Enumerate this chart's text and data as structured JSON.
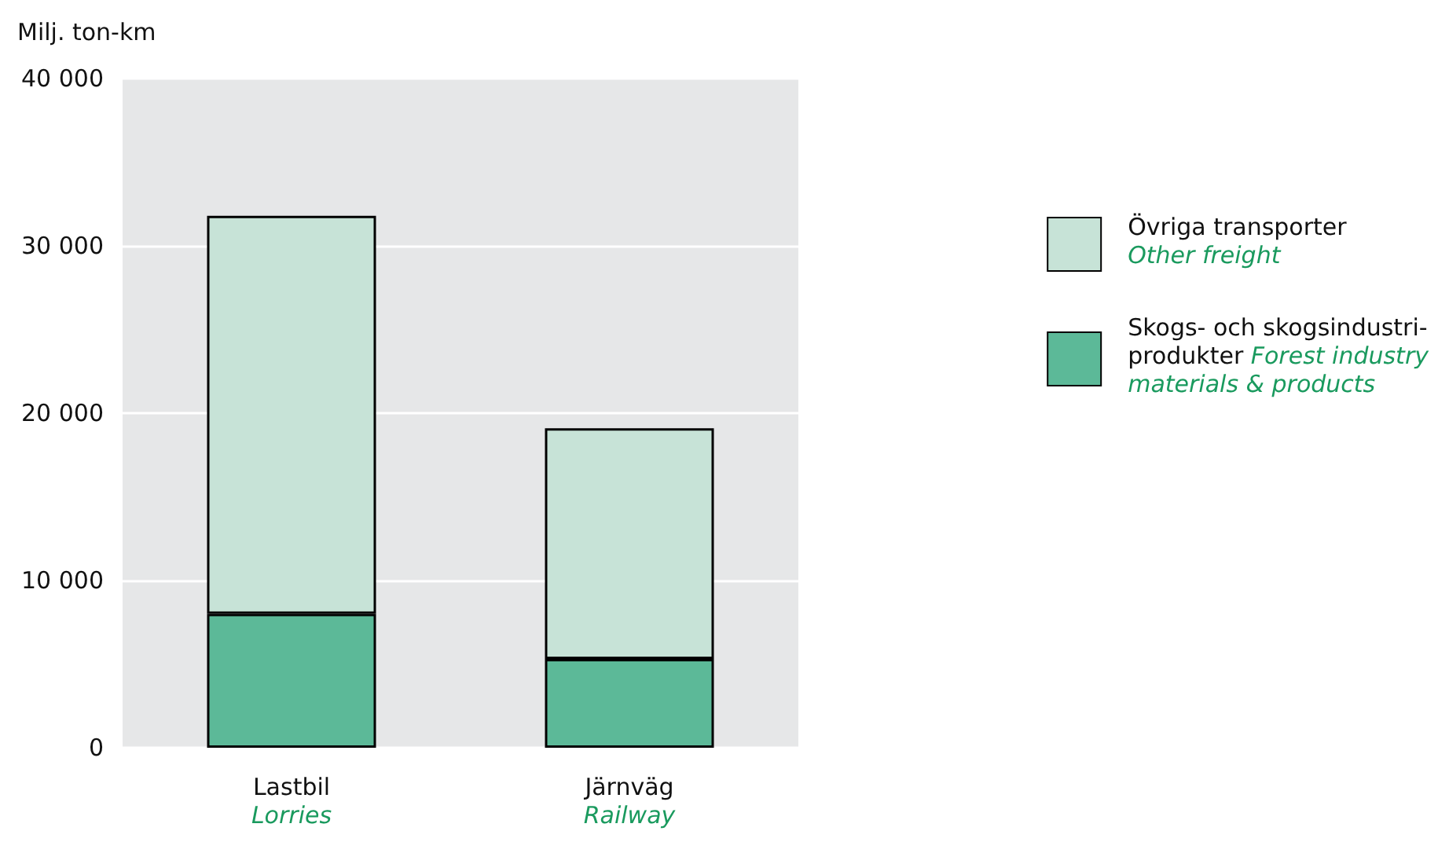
{
  "chart_data": {
    "type": "bar",
    "stacked": true,
    "ylabel": "Milj. ton-km",
    "categories": [
      "Lastbil\nLorries",
      "Järnväg\nRailway"
    ],
    "series": [
      {
        "name": "Skogs- och skogsindustri-\nprodukter  Forest industry\nmaterials & products",
        "color": "#5cb998",
        "values": [
          8000,
          5300
        ]
      },
      {
        "name": "Övriga transporter\nOther freight",
        "color": "#c7e3d7",
        "values": [
          23800,
          13800
        ]
      }
    ],
    "ylim": [
      0,
      40000
    ],
    "yticks": [
      {
        "value": 0,
        "label": "0"
      },
      {
        "value": 10000,
        "label": "10 000"
      },
      {
        "value": 20000,
        "label": "20 000"
      },
      {
        "value": 30000,
        "label": "30 000"
      },
      {
        "value": 40000,
        "label": "40 000"
      }
    ],
    "grid": "y",
    "legend": "right"
  }
}
